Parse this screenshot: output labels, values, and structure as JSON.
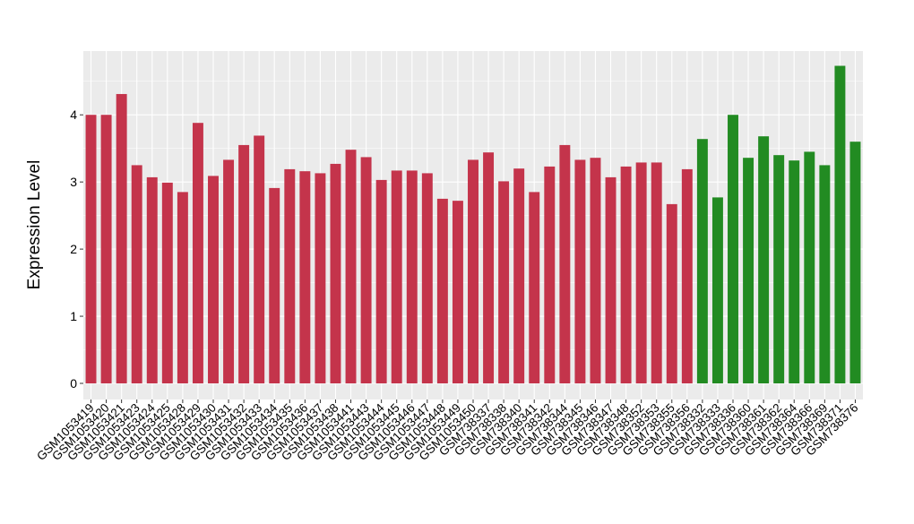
{
  "chart_data": {
    "type": "bar",
    "title": "",
    "xlabel": "",
    "ylabel": "Expression Level",
    "ylim": [
      -0.24,
      4.95
    ],
    "yticks": [
      0,
      1,
      2,
      3,
      4
    ],
    "grid": true,
    "legend": "none",
    "colors": {
      "group1": "#C4344B",
      "group2": "#228B22",
      "panel": "#EBEBEB",
      "grid": "#FFFFFF"
    },
    "categories": [
      "GSM1053419",
      "GSM1053420",
      "GSM1053421",
      "GSM1053423",
      "GSM1053424",
      "GSM1053425",
      "GSM1053428",
      "GSM1053429",
      "GSM1053430",
      "GSM1053431",
      "GSM1053432",
      "GSM1053433",
      "GSM1053434",
      "GSM1053435",
      "GSM1053436",
      "GSM1053437",
      "GSM1053438",
      "GSM1053441",
      "GSM1053443",
      "GSM1053444",
      "GSM1053445",
      "GSM1053446",
      "GSM1053447",
      "GSM1053448",
      "GSM1053449",
      "GSM1053450",
      "GSM738337",
      "GSM738338",
      "GSM738340",
      "GSM738341",
      "GSM738342",
      "GSM738344",
      "GSM738345",
      "GSM738346",
      "GSM738347",
      "GSM738348",
      "GSM738352",
      "GSM738353",
      "GSM738355",
      "GSM738356",
      "GSM738332",
      "GSM738333",
      "GSM738336",
      "GSM738360",
      "GSM738361",
      "GSM738362",
      "GSM738364",
      "GSM738366",
      "GSM738369",
      "GSM738371",
      "GSM738376"
    ],
    "values": [
      4.0,
      4.0,
      4.31,
      3.25,
      3.07,
      2.99,
      2.85,
      3.88,
      3.09,
      3.33,
      3.55,
      3.69,
      2.91,
      3.19,
      3.16,
      3.13,
      3.27,
      3.48,
      3.37,
      3.03,
      3.17,
      3.17,
      3.13,
      2.75,
      2.72,
      3.33,
      3.44,
      3.01,
      3.2,
      2.85,
      3.23,
      3.55,
      3.33,
      3.36,
      3.07,
      3.23,
      3.29,
      3.29,
      2.67,
      3.19,
      3.64,
      2.77,
      4.0,
      3.36,
      3.68,
      3.4,
      3.32,
      3.45,
      3.25,
      4.73,
      3.6
    ],
    "groups": [
      "group1",
      "group1",
      "group1",
      "group1",
      "group1",
      "group1",
      "group1",
      "group1",
      "group1",
      "group1",
      "group1",
      "group1",
      "group1",
      "group1",
      "group1",
      "group1",
      "group1",
      "group1",
      "group1",
      "group1",
      "group1",
      "group1",
      "group1",
      "group1",
      "group1",
      "group1",
      "group1",
      "group1",
      "group1",
      "group1",
      "group1",
      "group1",
      "group1",
      "group1",
      "group1",
      "group1",
      "group1",
      "group1",
      "group1",
      "group1",
      "group2",
      "group2",
      "group2",
      "group2",
      "group2",
      "group2",
      "group2",
      "group2",
      "group2",
      "group2",
      "group2"
    ]
  }
}
